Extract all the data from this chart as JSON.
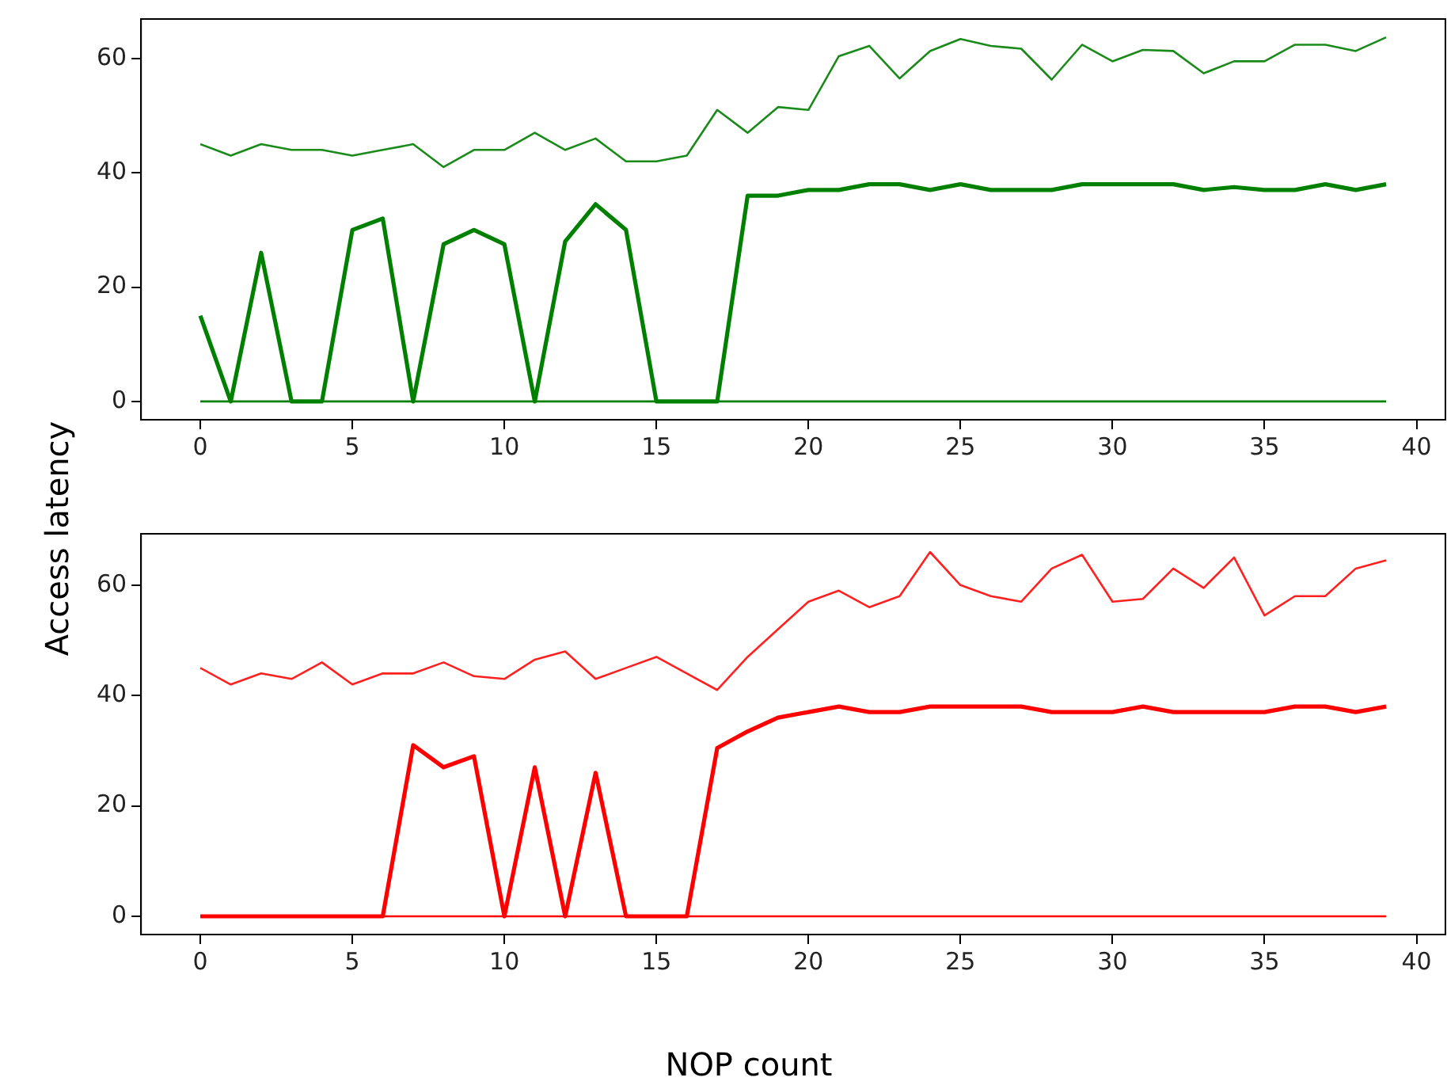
{
  "chart_data": [
    {
      "type": "line",
      "ylabel": "Access latency",
      "x": [
        0,
        1,
        2,
        3,
        4,
        5,
        6,
        7,
        8,
        9,
        10,
        11,
        12,
        13,
        14,
        15,
        16,
        17,
        18,
        19,
        20,
        21,
        22,
        23,
        24,
        25,
        26,
        27,
        28,
        29,
        30,
        31,
        32,
        33,
        34,
        35,
        36,
        37,
        38,
        39
      ],
      "xlim": [
        -1.95,
        40.95
      ],
      "xticks": [
        0,
        5,
        10,
        15,
        20,
        25,
        30,
        35,
        40
      ],
      "ylim": [
        -3.2,
        66.9
      ],
      "yticks": [
        0,
        20,
        40,
        60
      ],
      "grid": false,
      "legend": false,
      "marker": "none",
      "line_style": "solid",
      "series": [
        {
          "color": "#1a8a1a",
          "values": [
            45,
            43,
            45,
            44,
            44,
            43,
            44,
            45,
            41,
            44,
            44,
            47,
            44,
            46,
            42,
            42,
            43,
            51,
            47,
            51.5,
            51,
            60.4,
            62.2,
            56.5,
            61.3,
            63.4,
            62.2,
            61.7,
            56.3,
            62.4,
            59.5,
            61.5,
            61.3,
            57.4,
            59.5,
            59.5,
            62.4,
            62.4,
            61.3,
            63.7
          ]
        },
        {
          "color": "#008000",
          "values": [
            15,
            0,
            26,
            0,
            0,
            30,
            32,
            0,
            27.5,
            30,
            27.5,
            0,
            28,
            34.5,
            30,
            0,
            0,
            0,
            36,
            36,
            37,
            37,
            38,
            38,
            37,
            38,
            37,
            37,
            37,
            38,
            38,
            38,
            38,
            37,
            37.5,
            37,
            37,
            38,
            37,
            38
          ]
        },
        {
          "color": "#008000",
          "values": [
            0,
            0,
            0,
            0,
            0,
            0,
            0,
            0,
            0,
            0,
            0,
            0,
            0,
            0,
            0,
            0,
            0,
            0,
            0,
            0,
            0,
            0,
            0,
            0,
            0,
            0,
            0,
            0,
            0,
            0,
            0,
            0,
            0,
            0,
            0,
            0,
            0,
            0,
            0,
            0
          ]
        }
      ]
    },
    {
      "type": "line",
      "xlabel": "NOP count",
      "x": [
        0,
        1,
        2,
        3,
        4,
        5,
        6,
        7,
        8,
        9,
        10,
        11,
        12,
        13,
        14,
        15,
        16,
        17,
        18,
        19,
        20,
        21,
        22,
        23,
        24,
        25,
        26,
        27,
        28,
        29,
        30,
        31,
        32,
        33,
        34,
        35,
        36,
        37,
        38,
        39
      ],
      "xlim": [
        -1.95,
        40.95
      ],
      "xticks": [
        0,
        5,
        10,
        15,
        20,
        25,
        30,
        35,
        40
      ],
      "ylim": [
        -3.3,
        69.3
      ],
      "yticks": [
        0,
        20,
        40,
        60
      ],
      "grid": false,
      "legend": false,
      "marker": "none",
      "line_style": "solid",
      "series": [
        {
          "color": "#ff2020",
          "values": [
            45,
            42,
            44,
            43,
            46,
            42,
            44,
            44,
            46,
            43.5,
            43,
            46.5,
            48,
            43,
            45,
            47,
            44,
            41,
            47,
            52,
            57,
            59,
            56,
            58,
            66,
            60,
            58,
            57,
            63,
            65.5,
            57,
            57.5,
            63,
            59.5,
            65,
            54.5,
            58,
            58,
            63,
            64.5
          ]
        },
        {
          "color": "#ff0000",
          "values": [
            0,
            0,
            0,
            0,
            0,
            0,
            0,
            31,
            27,
            29,
            0,
            27,
            0,
            26,
            0,
            0,
            0,
            30.5,
            33.5,
            36,
            37,
            38,
            37,
            37,
            38,
            38,
            38,
            38,
            37,
            37,
            37,
            38,
            37,
            37,
            37,
            37,
            38,
            38,
            37,
            38
          ]
        },
        {
          "color": "#ff0000",
          "values": [
            0,
            0,
            0,
            0,
            0,
            0,
            0,
            0,
            0,
            0,
            0,
            0,
            0,
            0,
            0,
            0,
            0,
            0,
            0,
            0,
            0,
            0,
            0,
            0,
            0,
            0,
            0,
            0,
            0,
            0,
            0,
            0,
            0,
            0,
            0,
            0,
            0,
            0,
            0,
            0
          ]
        }
      ]
    }
  ]
}
